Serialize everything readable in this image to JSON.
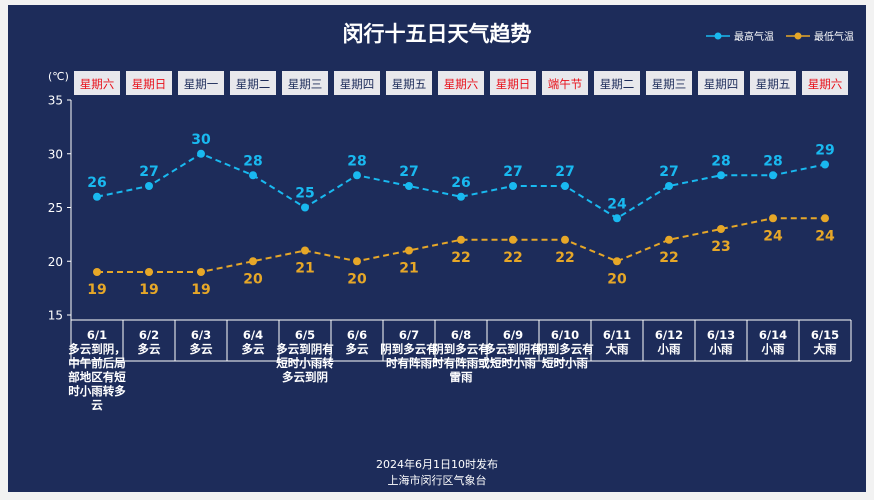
{
  "chart_data": {
    "type": "line",
    "title": "闵行十五日天气趋势",
    "ylabel": "(℃)",
    "ylim": [
      15,
      35
    ],
    "yticks": [
      15,
      20,
      25,
      30,
      35
    ],
    "legend_position": "top-right",
    "categories": [
      "6/1",
      "6/2",
      "6/3",
      "6/4",
      "6/5",
      "6/6",
      "6/7",
      "6/8",
      "6/9",
      "6/10",
      "6/11",
      "6/12",
      "6/13",
      "6/14",
      "6/15"
    ],
    "weekdays": [
      "星期六",
      "星期日",
      "星期一",
      "星期二",
      "星期三",
      "星期四",
      "星期五",
      "星期六",
      "星期日",
      "端午节",
      "星期二",
      "星期三",
      "星期四",
      "星期五",
      "星期六"
    ],
    "weekday_highlight": [
      true,
      true,
      false,
      false,
      false,
      false,
      false,
      true,
      true,
      true,
      false,
      false,
      false,
      false,
      true
    ],
    "weather": [
      "多云到阴，中午前后局部地区有短时小雨转多云",
      "多云",
      "多云",
      "多云",
      "多云到阴有短时小雨转多云到阴",
      "多云",
      "阴到多云有时有阵雨",
      "阴到多云有时有阵雨或雷雨",
      "多云到阴有短时小雨",
      "阴到多云有短时小雨",
      "大雨",
      "小雨",
      "小雨",
      "小雨",
      "大雨"
    ],
    "series": [
      {
        "name": "最高气温",
        "values": [
          26,
          27,
          30,
          28,
          25,
          28,
          27,
          26,
          27,
          27,
          24,
          27,
          28,
          28,
          29
        ]
      },
      {
        "name": "最低气温",
        "values": [
          19,
          19,
          19,
          20,
          21,
          20,
          21,
          22,
          22,
          22,
          20,
          22,
          23,
          24,
          24
        ]
      }
    ]
  },
  "colors": {
    "background": "#1d2c5a",
    "high": "#19b9f0",
    "low": "#e6a728",
    "weekday_box": "#e8e8ec",
    "holiday_text": "#e8101a",
    "weekday_text": "#1d2c5a",
    "text": "#ffffff"
  },
  "footer": {
    "line1": "2024年6月1日10时发布",
    "line2": "上海市闵行区气象台"
  }
}
